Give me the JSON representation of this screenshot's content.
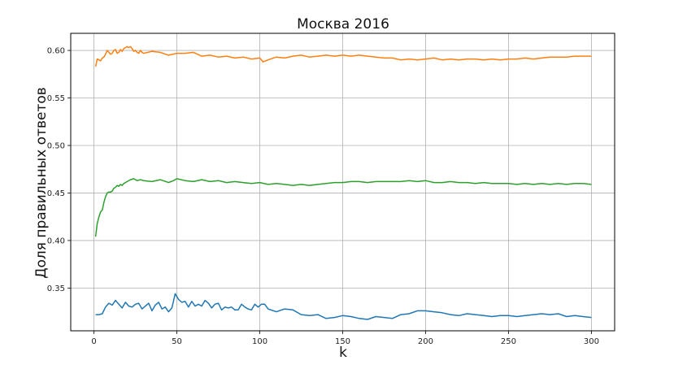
{
  "chart_data": {
    "type": "line",
    "title": "Москва 2016",
    "xlabel": "k",
    "ylabel": "Доля правильных ответов",
    "xlim": [
      -14,
      314
    ],
    "ylim": [
      0.305,
      0.618
    ],
    "xticks": [
      "0",
      "50",
      "100",
      "150",
      "200",
      "250",
      "300"
    ],
    "yticks": [
      "0.35",
      "0.40",
      "0.45",
      "0.50",
      "0.55",
      "0.60"
    ],
    "grid": true,
    "series": [
      {
        "color": "#ff7f0e",
        "x": [
          1,
          2,
          3,
          4,
          5,
          6,
          7,
          8,
          9,
          10,
          11,
          12,
          13,
          14,
          15,
          16,
          17,
          18,
          19,
          20,
          21,
          22,
          23,
          24,
          25,
          26,
          27,
          28,
          29,
          30,
          35,
          40,
          45,
          50,
          55,
          60,
          65,
          70,
          75,
          80,
          85,
          90,
          95,
          100,
          102,
          105,
          110,
          115,
          120,
          125,
          130,
          135,
          140,
          145,
          150,
          155,
          160,
          165,
          170,
          175,
          180,
          185,
          190,
          195,
          200,
          205,
          210,
          215,
          220,
          225,
          230,
          235,
          240,
          245,
          250,
          255,
          260,
          265,
          270,
          275,
          280,
          285,
          290,
          295,
          300
        ],
        "y": [
          0.583,
          0.591,
          0.59,
          0.589,
          0.592,
          0.593,
          0.596,
          0.6,
          0.598,
          0.596,
          0.597,
          0.6,
          0.601,
          0.597,
          0.598,
          0.601,
          0.599,
          0.602,
          0.603,
          0.604,
          0.603,
          0.604,
          0.602,
          0.599,
          0.6,
          0.598,
          0.597,
          0.6,
          0.598,
          0.597,
          0.599,
          0.598,
          0.595,
          0.597,
          0.597,
          0.598,
          0.594,
          0.595,
          0.593,
          0.594,
          0.592,
          0.593,
          0.591,
          0.592,
          0.588,
          0.59,
          0.593,
          0.592,
          0.594,
          0.595,
          0.593,
          0.594,
          0.595,
          0.594,
          0.595,
          0.594,
          0.595,
          0.594,
          0.593,
          0.592,
          0.592,
          0.59,
          0.591,
          0.59,
          0.591,
          0.592,
          0.59,
          0.591,
          0.59,
          0.591,
          0.591,
          0.59,
          0.591,
          0.59,
          0.591,
          0.591,
          0.592,
          0.591,
          0.592,
          0.593,
          0.593,
          0.593,
          0.594,
          0.594,
          0.594
        ]
      },
      {
        "color": "#2ca02c",
        "x": [
          1,
          2,
          3,
          4,
          5,
          6,
          7,
          8,
          9,
          10,
          11,
          12,
          13,
          14,
          15,
          16,
          17,
          18,
          19,
          20,
          22,
          24,
          26,
          28,
          30,
          35,
          40,
          45,
          48,
          50,
          55,
          60,
          65,
          70,
          75,
          80,
          85,
          90,
          95,
          100,
          105,
          110,
          115,
          120,
          125,
          130,
          135,
          140,
          145,
          150,
          155,
          160,
          165,
          170,
          175,
          180,
          185,
          190,
          195,
          200,
          205,
          210,
          215,
          220,
          225,
          230,
          235,
          240,
          245,
          250,
          255,
          260,
          265,
          270,
          275,
          280,
          285,
          290,
          295,
          300
        ],
        "y": [
          0.404,
          0.418,
          0.425,
          0.43,
          0.432,
          0.44,
          0.446,
          0.45,
          0.451,
          0.451,
          0.452,
          0.455,
          0.456,
          0.458,
          0.457,
          0.459,
          0.458,
          0.46,
          0.461,
          0.462,
          0.464,
          0.465,
          0.463,
          0.464,
          0.463,
          0.462,
          0.464,
          0.461,
          0.463,
          0.465,
          0.463,
          0.462,
          0.464,
          0.462,
          0.463,
          0.461,
          0.462,
          0.461,
          0.46,
          0.461,
          0.459,
          0.46,
          0.459,
          0.458,
          0.459,
          0.458,
          0.459,
          0.46,
          0.461,
          0.461,
          0.462,
          0.462,
          0.461,
          0.462,
          0.462,
          0.462,
          0.462,
          0.463,
          0.462,
          0.463,
          0.461,
          0.461,
          0.462,
          0.461,
          0.461,
          0.46,
          0.461,
          0.46,
          0.46,
          0.46,
          0.459,
          0.46,
          0.459,
          0.46,
          0.459,
          0.46,
          0.459,
          0.46,
          0.46,
          0.459
        ]
      },
      {
        "color": "#1f77b4",
        "x": [
          1,
          3,
          5,
          7,
          9,
          11,
          13,
          15,
          17,
          19,
          21,
          23,
          25,
          27,
          29,
          31,
          33,
          35,
          37,
          39,
          41,
          43,
          45,
          47,
          49,
          51,
          53,
          55,
          57,
          59,
          61,
          63,
          65,
          67,
          69,
          71,
          73,
          75,
          77,
          79,
          81,
          83,
          85,
          87,
          89,
          91,
          93,
          95,
          97,
          99,
          101,
          103,
          105,
          110,
          115,
          120,
          125,
          130,
          135,
          140,
          145,
          150,
          155,
          160,
          165,
          170,
          175,
          180,
          185,
          190,
          195,
          200,
          205,
          210,
          215,
          220,
          225,
          230,
          235,
          240,
          245,
          250,
          255,
          260,
          265,
          270,
          275,
          280,
          285,
          290,
          295,
          300
        ],
        "y": [
          0.322,
          0.322,
          0.323,
          0.33,
          0.334,
          0.332,
          0.337,
          0.333,
          0.329,
          0.335,
          0.331,
          0.33,
          0.333,
          0.334,
          0.328,
          0.331,
          0.334,
          0.326,
          0.332,
          0.335,
          0.328,
          0.33,
          0.325,
          0.329,
          0.344,
          0.338,
          0.335,
          0.336,
          0.33,
          0.336,
          0.331,
          0.333,
          0.331,
          0.337,
          0.334,
          0.329,
          0.333,
          0.334,
          0.327,
          0.33,
          0.329,
          0.33,
          0.327,
          0.327,
          0.333,
          0.33,
          0.328,
          0.327,
          0.333,
          0.33,
          0.333,
          0.333,
          0.328,
          0.325,
          0.328,
          0.327,
          0.322,
          0.321,
          0.322,
          0.318,
          0.319,
          0.321,
          0.32,
          0.318,
          0.317,
          0.32,
          0.319,
          0.318,
          0.322,
          0.323,
          0.326,
          0.326,
          0.325,
          0.324,
          0.322,
          0.321,
          0.323,
          0.322,
          0.321,
          0.32,
          0.321,
          0.321,
          0.32,
          0.321,
          0.322,
          0.323,
          0.322,
          0.323,
          0.32,
          0.321,
          0.32,
          0.319
        ]
      }
    ]
  }
}
